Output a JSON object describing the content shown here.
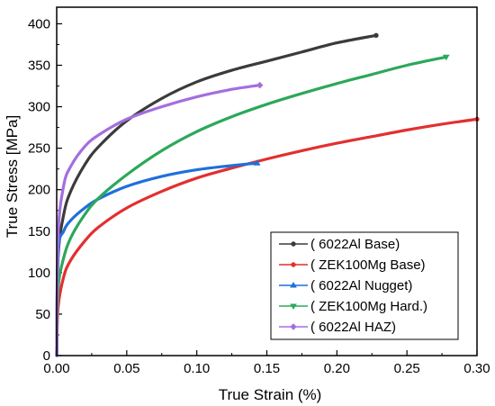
{
  "chart_data": {
    "type": "line",
    "xlabel": "True Strain (%)",
    "ylabel": "True Stress [MPa]",
    "xlim": [
      0,
      0.3
    ],
    "ylim": [
      0,
      420
    ],
    "xticks": [
      0.0,
      0.05,
      0.1,
      0.15,
      0.2,
      0.25,
      0.3
    ],
    "xtick_labels": [
      "0.00",
      "0.05",
      "0.10",
      "0.15",
      "0.20",
      "0.25",
      "0.30"
    ],
    "yticks": [
      0,
      50,
      100,
      150,
      200,
      250,
      300,
      350,
      400
    ],
    "ytick_labels": [
      "0",
      "50",
      "100",
      "150",
      "200",
      "250",
      "300",
      "350",
      "400"
    ],
    "grid": false,
    "legend_position": "bottom-right",
    "series": [
      {
        "name": "( 6022Al Base)",
        "color": "#3b3b3b",
        "marker": "circle",
        "points": [
          [
            0,
            0
          ],
          [
            0.001,
            118
          ],
          [
            0.005,
            170
          ],
          [
            0.01,
            198
          ],
          [
            0.02,
            230
          ],
          [
            0.03,
            252
          ],
          [
            0.05,
            283
          ],
          [
            0.075,
            310
          ],
          [
            0.1,
            330
          ],
          [
            0.125,
            344
          ],
          [
            0.15,
            355
          ],
          [
            0.175,
            366
          ],
          [
            0.2,
            377
          ],
          [
            0.228,
            386
          ]
        ]
      },
      {
        "name": "( ZEK100Mg Base)",
        "color": "#e32f2f",
        "marker": "circle",
        "points": [
          [
            0,
            0
          ],
          [
            0.001,
            58
          ],
          [
            0.005,
            95
          ],
          [
            0.01,
            115
          ],
          [
            0.02,
            138
          ],
          [
            0.03,
            155
          ],
          [
            0.05,
            178
          ],
          [
            0.075,
            198
          ],
          [
            0.1,
            214
          ],
          [
            0.125,
            226
          ],
          [
            0.15,
            237
          ],
          [
            0.175,
            247
          ],
          [
            0.2,
            256
          ],
          [
            0.225,
            264
          ],
          [
            0.25,
            272
          ],
          [
            0.275,
            279
          ],
          [
            0.3,
            285
          ]
        ]
      },
      {
        "name": "( 6022Al Nugget)",
        "color": "#1f6fdc",
        "marker": "triangle",
        "points": [
          [
            0,
            0
          ],
          [
            0.001,
            125
          ],
          [
            0.005,
            150
          ],
          [
            0.01,
            163
          ],
          [
            0.02,
            178
          ],
          [
            0.03,
            189
          ],
          [
            0.05,
            204
          ],
          [
            0.075,
            216
          ],
          [
            0.1,
            224
          ],
          [
            0.125,
            229
          ],
          [
            0.143,
            232
          ]
        ]
      },
      {
        "name": "( ZEK100Mg Hard.)",
        "color": "#2ca85a",
        "marker": "triangle-down",
        "points": [
          [
            0,
            0
          ],
          [
            0.001,
            80
          ],
          [
            0.005,
            118
          ],
          [
            0.01,
            142
          ],
          [
            0.02,
            170
          ],
          [
            0.03,
            190
          ],
          [
            0.05,
            218
          ],
          [
            0.075,
            247
          ],
          [
            0.1,
            270
          ],
          [
            0.125,
            288
          ],
          [
            0.15,
            303
          ],
          [
            0.175,
            316
          ],
          [
            0.2,
            328
          ],
          [
            0.225,
            339
          ],
          [
            0.25,
            350
          ],
          [
            0.278,
            360
          ]
        ]
      },
      {
        "name": "( 6022Al HAZ)",
        "color": "#a36fdd",
        "marker": "diamond",
        "points": [
          [
            0,
            0
          ],
          [
            0.001,
            145
          ],
          [
            0.005,
            205
          ],
          [
            0.01,
            228
          ],
          [
            0.02,
            252
          ],
          [
            0.03,
            266
          ],
          [
            0.05,
            285
          ],
          [
            0.075,
            300
          ],
          [
            0.1,
            312
          ],
          [
            0.125,
            321
          ],
          [
            0.145,
            326
          ]
        ]
      }
    ]
  }
}
